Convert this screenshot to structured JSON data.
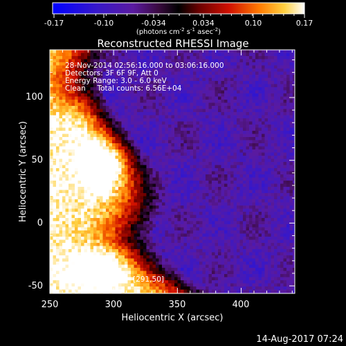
{
  "chart_data": {
    "type": "heatmap",
    "title": "Reconstructed RHESSI Image",
    "xlabel": "Heliocentric X (arcsec)",
    "ylabel": "Heliocentric Y (arcsec)",
    "xlim": [
      250,
      442
    ],
    "ylim": [
      -56,
      138
    ],
    "x_ticks": [
      250,
      300,
      350,
      400
    ],
    "y_ticks": [
      -50,
      0,
      50,
      100
    ],
    "colorbar": {
      "min": -0.17,
      "max": 0.17,
      "ticks": [
        "-0.17",
        "-0.10",
        "-0.034",
        "0.034",
        "0.10",
        "0.17"
      ],
      "unit_prefix": "(photons cm",
      "unit_sup1": "-2",
      "unit_mid": " s",
      "unit_sup2": "-1",
      "unit_mid2": " asec",
      "unit_sup3": "-2",
      "unit_suffix": ")"
    },
    "annotations": [
      "28-Nov-2014 02:56:16.000 to 03:06:16.000",
      "Detectors: 3F 6F 9F, Att 0",
      "Energy Range: 3.0 - 6.0 keV",
      "Clean     Total counts: 6.56E+04"
    ],
    "peak_label": "Position of Peak = [291,50]",
    "peak": [
      291,
      50
    ],
    "timestamp": "14-Aug-2017 07:24"
  }
}
